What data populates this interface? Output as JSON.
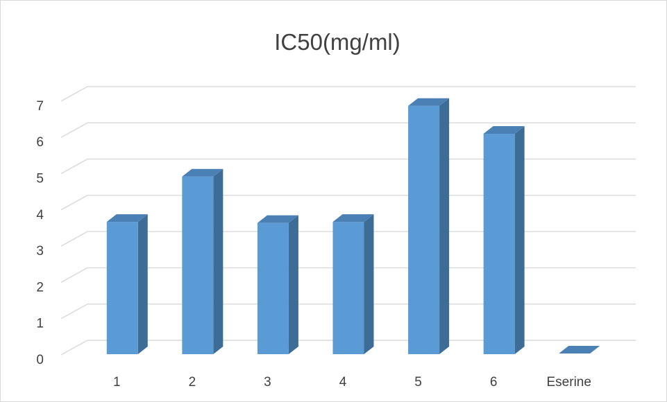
{
  "chart_data": {
    "type": "bar",
    "style": "3d-column",
    "title": "IC50(mg/ml)",
    "categories": [
      "1",
      "2",
      "3",
      "4",
      "5",
      "6",
      "Eserine"
    ],
    "values": [
      3.65,
      4.9,
      3.62,
      3.65,
      6.85,
      6.08,
      0.02
    ],
    "ylim": [
      0,
      7
    ],
    "y_ticks": [
      "0",
      "1",
      "2",
      "3",
      "4",
      "5",
      "6",
      "7"
    ],
    "grid": true,
    "legend": "none",
    "colors": {
      "front": "#5b9bd5",
      "side": "#3d6d97",
      "top": "#4a80b4",
      "grid": "#d9d9d9",
      "text": "#404040"
    }
  }
}
